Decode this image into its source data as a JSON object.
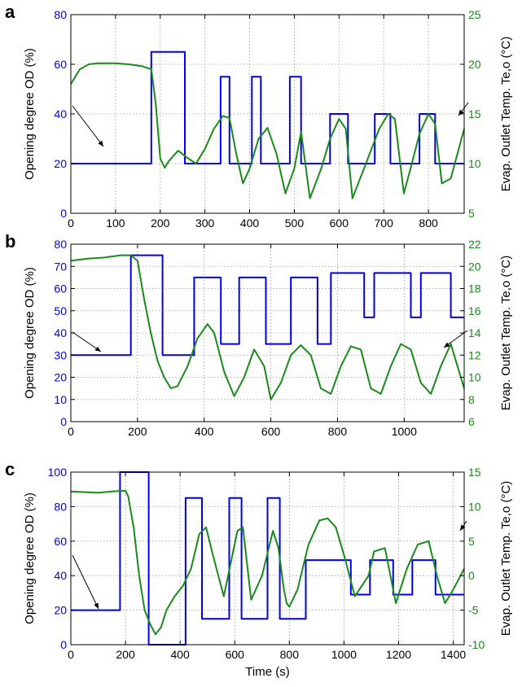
{
  "colors": {
    "od": "#0000ee",
    "temp": "#1a8a1a",
    "axis": "#000000",
    "grid": "#9a9a9a"
  },
  "chart_data": [
    {
      "type": "line",
      "panel_label": "a",
      "ylabel_left": "Opening degree OD (%)",
      "ylabel_right": "Evap. Outlet Temp. Te,o (°C)",
      "xlim": [
        0,
        880
      ],
      "ylim_left": [
        0,
        80
      ],
      "ylim_right": [
        5,
        25
      ],
      "xticks": [
        0,
        100,
        200,
        300,
        400,
        500,
        600,
        700,
        800
      ],
      "yticks_left": [
        0,
        20,
        40,
        60,
        80
      ],
      "yticks_right": [
        5,
        10,
        15,
        20,
        25
      ],
      "grid": true,
      "series": [
        {
          "axis": "left",
          "x": [
            0,
            180,
            180,
            255,
            255,
            335,
            335,
            355,
            355,
            405,
            405,
            425,
            425,
            490,
            490,
            515,
            515,
            580,
            580,
            620,
            620,
            680,
            680,
            715,
            715,
            780,
            780,
            815,
            815,
            880
          ],
          "y": [
            20,
            20,
            65,
            65,
            20,
            20,
            55,
            55,
            20,
            20,
            55,
            55,
            20,
            20,
            55,
            55,
            20,
            20,
            40,
            40,
            20,
            20,
            40,
            40,
            20,
            20,
            40,
            40,
            20,
            20
          ]
        },
        {
          "axis": "right",
          "x": [
            0,
            20,
            40,
            60,
            80,
            100,
            130,
            160,
            180,
            190,
            200,
            210,
            220,
            240,
            260,
            280,
            300,
            320,
            340,
            355,
            370,
            385,
            400,
            420,
            440,
            460,
            480,
            500,
            515,
            535,
            560,
            580,
            600,
            615,
            630,
            660,
            690,
            710,
            725,
            745,
            760,
            780,
            800,
            815,
            830,
            850,
            880
          ],
          "y": [
            18.0,
            19.5,
            20.0,
            20.1,
            20.1,
            20.1,
            20.0,
            19.8,
            19.5,
            16.0,
            10.5,
            9.6,
            10.3,
            11.3,
            10.6,
            10.0,
            11.5,
            13.5,
            14.8,
            14.6,
            11.0,
            8.0,
            9.5,
            12.5,
            13.6,
            11.0,
            7.0,
            9.5,
            13.2,
            6.5,
            9.5,
            12.5,
            14.5,
            13.5,
            6.5,
            10.0,
            13.5,
            15.0,
            14.5,
            7.0,
            9.5,
            13.0,
            15.0,
            14.0,
            8.0,
            8.5,
            13.5
          ]
        }
      ]
    },
    {
      "type": "line",
      "panel_label": "b",
      "ylabel_left": "Opening degree OD (%)",
      "ylabel_right": "Evap. Outlet Temp. Te,o (°C)",
      "xlim": [
        0,
        1180
      ],
      "ylim_left": [
        0,
        80
      ],
      "ylim_right": [
        6,
        22
      ],
      "xticks": [
        0,
        200,
        400,
        600,
        800,
        1000
      ],
      "yticks_left": [
        0,
        10,
        20,
        30,
        40,
        50,
        60,
        70,
        80
      ],
      "yticks_right": [
        6,
        8,
        10,
        12,
        14,
        16,
        18,
        20,
        22
      ],
      "grid": true,
      "series": [
        {
          "axis": "left",
          "x": [
            0,
            180,
            180,
            275,
            275,
            370,
            370,
            450,
            450,
            505,
            505,
            585,
            585,
            660,
            660,
            740,
            740,
            780,
            780,
            880,
            880,
            910,
            910,
            1020,
            1020,
            1050,
            1050,
            1140,
            1140,
            1180
          ],
          "y": [
            30,
            30,
            75,
            75,
            30,
            30,
            65,
            65,
            35,
            35,
            65,
            65,
            35,
            35,
            65,
            65,
            35,
            35,
            67,
            67,
            47,
            47,
            67,
            67,
            47,
            47,
            67,
            67,
            47,
            47
          ]
        },
        {
          "axis": "right",
          "x": [
            0,
            50,
            100,
            150,
            180,
            200,
            220,
            240,
            260,
            280,
            300,
            320,
            350,
            380,
            410,
            430,
            460,
            490,
            520,
            550,
            580,
            600,
            630,
            660,
            690,
            720,
            750,
            780,
            810,
            840,
            870,
            900,
            930,
            960,
            990,
            1020,
            1050,
            1080,
            1110,
            1140,
            1160,
            1180
          ],
          "y": [
            20.5,
            20.7,
            20.8,
            21.0,
            21.0,
            20.5,
            17.0,
            14.0,
            11.5,
            10.0,
            9.0,
            9.2,
            11.0,
            13.5,
            14.8,
            14.0,
            10.5,
            8.3,
            10.0,
            12.5,
            11.0,
            8.0,
            9.5,
            12.0,
            12.9,
            12.0,
            9.0,
            8.5,
            11.0,
            12.8,
            12.5,
            9.0,
            8.5,
            11.0,
            13.0,
            12.5,
            9.5,
            8.5,
            11.0,
            13.0,
            11.0,
            9.0
          ]
        }
      ]
    },
    {
      "type": "line",
      "panel_label": "c",
      "ylabel_left": "Opening degree OD (%)",
      "ylabel_right": "Evap. Outlet Temp. Te,o (°C)",
      "xlabel": "Time (s)",
      "xlim": [
        0,
        1440
      ],
      "ylim_left": [
        0,
        100
      ],
      "ylim_right": [
        -10,
        15
      ],
      "xticks": [
        0,
        200,
        400,
        600,
        800,
        1000,
        1200,
        1400
      ],
      "yticks_left": [
        0,
        20,
        40,
        60,
        80,
        100
      ],
      "yticks_right": [
        -10,
        -5,
        0,
        5,
        10,
        15
      ],
      "grid": true,
      "series": [
        {
          "axis": "left",
          "x": [
            0,
            180,
            180,
            285,
            285,
            420,
            420,
            480,
            480,
            580,
            580,
            625,
            625,
            720,
            720,
            765,
            765,
            860,
            860,
            1025,
            1025,
            1095,
            1095,
            1180,
            1180,
            1250,
            1250,
            1335,
            1335,
            1440
          ],
          "y": [
            20,
            20,
            100,
            100,
            0,
            0,
            85,
            85,
            15,
            15,
            85,
            85,
            15,
            15,
            85,
            85,
            15,
            15,
            49,
            49,
            29,
            29,
            49,
            49,
            29,
            29,
            49,
            49,
            29,
            29
          ]
        },
        {
          "axis": "right",
          "x": [
            0,
            100,
            150,
            200,
            210,
            230,
            250,
            270,
            290,
            310,
            330,
            350,
            380,
            410,
            440,
            470,
            495,
            520,
            560,
            610,
            630,
            660,
            700,
            740,
            760,
            780,
            790,
            800,
            830,
            870,
            910,
            940,
            970,
            1000,
            1040,
            1090,
            1110,
            1150,
            1190,
            1230,
            1270,
            1310,
            1340,
            1370,
            1400,
            1440
          ],
          "y": [
            12.2,
            12.0,
            12.2,
            12.3,
            11.5,
            7.0,
            0.0,
            -5.0,
            -7.0,
            -8.5,
            -7.5,
            -5.0,
            -3.0,
            -1.5,
            1.0,
            6.0,
            7.0,
            3.0,
            -3.0,
            6.5,
            7.0,
            -3.5,
            0.0,
            6.5,
            4.0,
            -2.0,
            -4.0,
            -4.5,
            -2.0,
            4.5,
            8.0,
            8.3,
            7.0,
            3.0,
            -3.0,
            0.0,
            3.5,
            4.0,
            -4.0,
            1.0,
            4.5,
            5.0,
            0.0,
            -4.0,
            -2.0,
            1.0
          ]
        }
      ]
    }
  ]
}
